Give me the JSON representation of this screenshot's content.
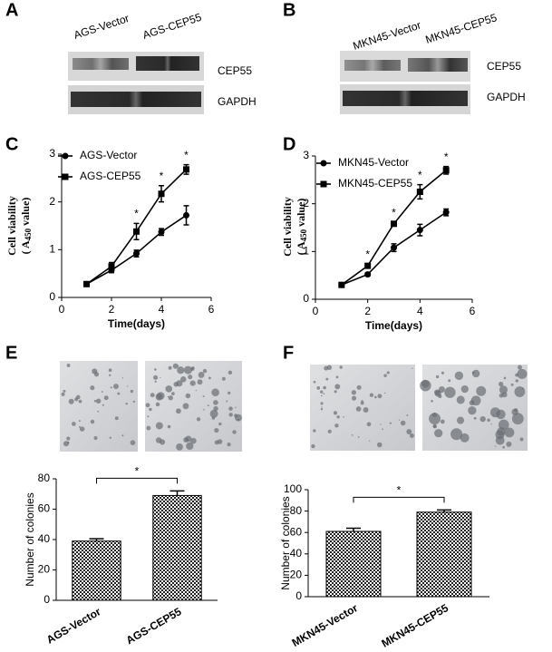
{
  "panels": [
    "A",
    "B",
    "C",
    "D",
    "E",
    "F"
  ],
  "blots": [
    {
      "lanes": [
        "AGS-Vector",
        "AGS-CEP55"
      ],
      "rows": [
        "CEP55",
        "GAPDH"
      ]
    },
    {
      "lanes": [
        "MKN45-Vector",
        "MKN45-CEP55"
      ],
      "rows": [
        "CEP55",
        "GAPDH"
      ]
    }
  ],
  "chart_data": [
    {
      "type": "line",
      "x_label": "Time(days)",
      "y_label": "Cell viability",
      "y_label_unit": {
        "prefix": "( A",
        "sub": "450",
        "suffix": " value)"
      },
      "x": [
        1,
        2,
        3,
        4,
        5
      ],
      "series": [
        {
          "name": "AGS-Vector",
          "color": "#000000",
          "marker": "circle",
          "values": [
            0.28,
            0.57,
            0.92,
            1.37,
            1.72
          ],
          "errors": [
            0.03,
            0.05,
            0.07,
            0.07,
            0.2
          ]
        },
        {
          "name": "AGS-CEP55",
          "color": "#000000",
          "marker": "square",
          "values": [
            0.28,
            0.65,
            1.38,
            2.17,
            2.68
          ],
          "errors": [
            0.03,
            0.08,
            0.17,
            0.17,
            0.1
          ]
        }
      ],
      "annotations": [
        {
          "x": 3,
          "text": "*"
        },
        {
          "x": 4,
          "text": "*"
        },
        {
          "x": 5,
          "text": "*"
        }
      ],
      "xlim": [
        0,
        6
      ],
      "xticks": [
        0,
        2,
        4,
        6
      ],
      "ylim": [
        0,
        3
      ],
      "yticks": [
        0,
        1,
        2,
        3
      ]
    },
    {
      "type": "line",
      "x_label": "Time(days)",
      "y_label": "Cell viability",
      "y_label_unit": {
        "prefix": "( A",
        "sub": "450",
        "suffix": " value)"
      },
      "x": [
        1,
        2,
        3,
        4,
        5
      ],
      "series": [
        {
          "name": "MKN45-Vector",
          "color": "#000000",
          "marker": "circle",
          "values": [
            0.3,
            0.52,
            1.08,
            1.45,
            1.82
          ],
          "errors": [
            0.02,
            0.03,
            0.08,
            0.12,
            0.07
          ]
        },
        {
          "name": "MKN45-CEP55",
          "color": "#000000",
          "marker": "square",
          "values": [
            0.3,
            0.7,
            1.58,
            2.25,
            2.7
          ],
          "errors": [
            0.02,
            0.03,
            0.03,
            0.15,
            0.08
          ]
        }
      ],
      "annotations": [
        {
          "x": 2,
          "text": "*"
        },
        {
          "x": 3,
          "text": "*"
        },
        {
          "x": 4,
          "text": "*"
        },
        {
          "x": 5,
          "text": "*"
        }
      ],
      "xlim": [
        0,
        6
      ],
      "xticks": [
        0,
        2,
        4,
        6
      ],
      "ylim": [
        0,
        3
      ],
      "yticks": [
        0,
        1,
        2,
        3
      ]
    },
    {
      "type": "bar",
      "y_label": "Number of colonies",
      "categories": [
        "AGS-Vector",
        "AGS-CEP55"
      ],
      "values": [
        39,
        69
      ],
      "errors": [
        1.5,
        3
      ],
      "significance": "*",
      "ylim": [
        0,
        80
      ],
      "yticks": [
        0,
        20,
        40,
        60,
        80
      ]
    },
    {
      "type": "bar",
      "y_label": "Number of colonies",
      "categories": [
        "MKN45-Vector",
        "MKN45-CEP55"
      ],
      "values": [
        61,
        79
      ],
      "errors": [
        3,
        2
      ],
      "significance": "*",
      "ylim": [
        0,
        100
      ],
      "yticks": [
        0,
        20,
        40,
        60,
        80,
        100
      ]
    }
  ]
}
